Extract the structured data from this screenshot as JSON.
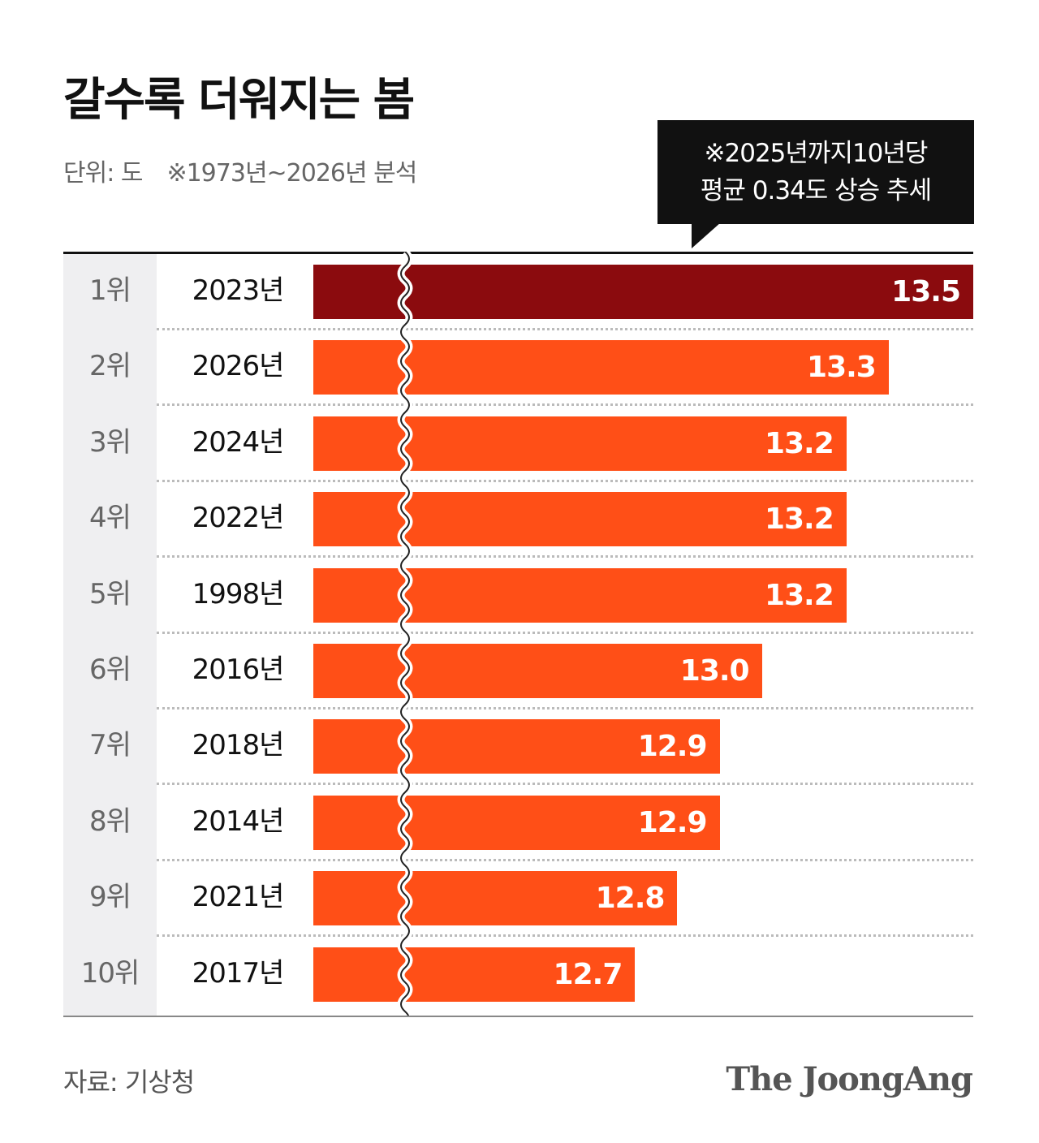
{
  "chart_data": {
    "type": "bar",
    "orientation": "horizontal",
    "title": "갈수록 더워지는 봄",
    "unit_label": "단위: 도",
    "note": "※1973년~2026년 분석",
    "callout": [
      "※2025년까지10년당",
      "평균 0.34도 상승 추세"
    ],
    "axis_break": true,
    "source": "자료: 기상청",
    "brand": "The JoongAng",
    "rows": [
      {
        "rank": "1위",
        "year": "2023년",
        "value": 13.5,
        "label": "13.5"
      },
      {
        "rank": "2위",
        "year": "2026년",
        "value": 13.3,
        "label": "13.3"
      },
      {
        "rank": "3위",
        "year": "2024년",
        "value": 13.2,
        "label": "13.2"
      },
      {
        "rank": "4위",
        "year": "2022년",
        "value": 13.2,
        "label": "13.2"
      },
      {
        "rank": "5위",
        "year": "1998년",
        "value": 13.2,
        "label": "13.2"
      },
      {
        "rank": "6위",
        "year": "2016년",
        "value": 13.0,
        "label": "13.0"
      },
      {
        "rank": "7위",
        "year": "2018년",
        "value": 12.9,
        "label": "12.9"
      },
      {
        "rank": "8위",
        "year": "2014년",
        "value": 12.9,
        "label": "12.9"
      },
      {
        "rank": "9위",
        "year": "2021년",
        "value": 12.8,
        "label": "12.8"
      },
      {
        "rank": "10위",
        "year": "2017년",
        "value": 12.7,
        "label": "12.7"
      }
    ],
    "colors": {
      "highlight": "#8b0b0e",
      "bar": "#ff4f17",
      "rank_bg": "#efeff1",
      "callout_bg": "#111111"
    }
  }
}
